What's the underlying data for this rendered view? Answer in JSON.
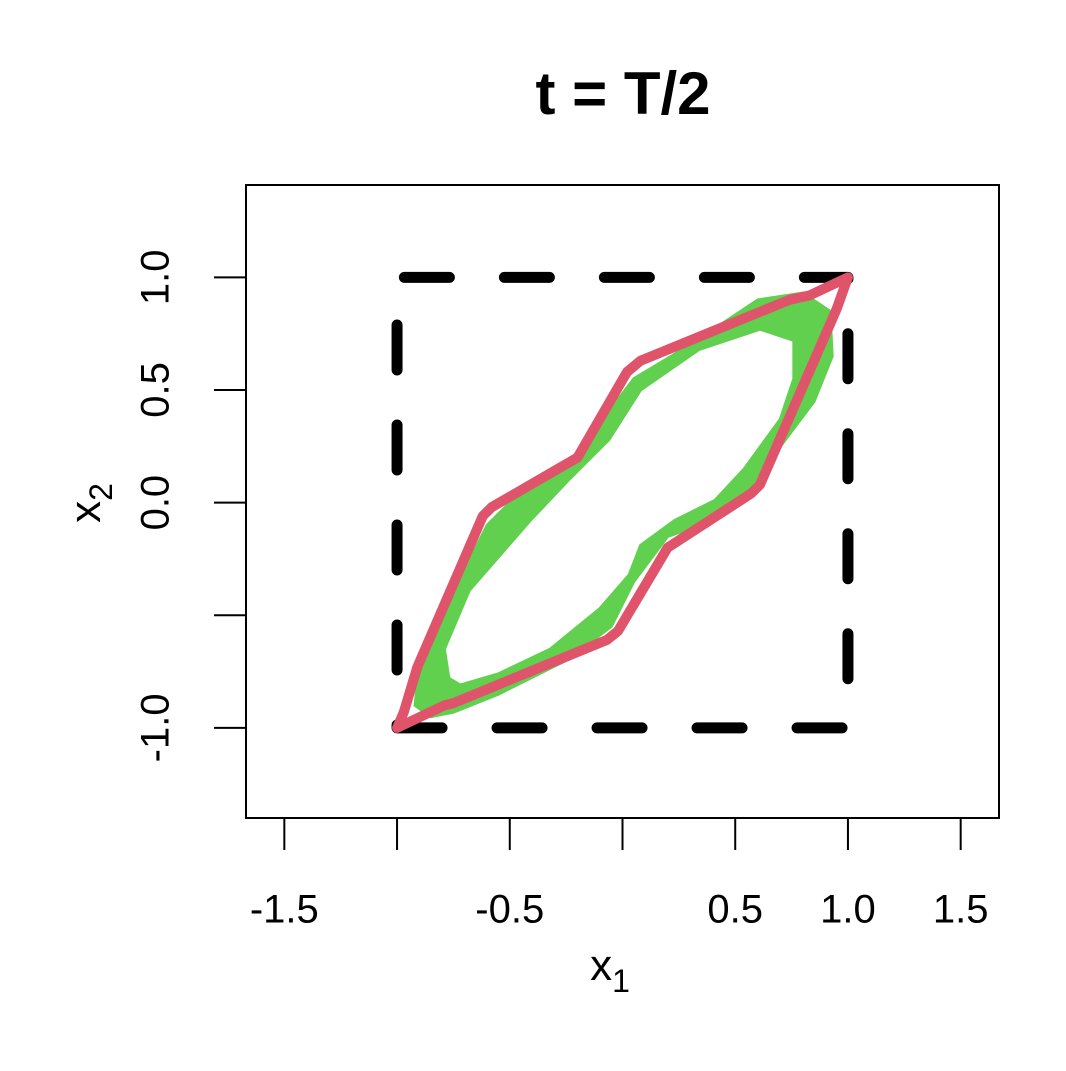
{
  "chart_data": {
    "type": "polygon",
    "title": "t = T/2",
    "xlabel": {
      "text": "x",
      "sub": "1"
    },
    "ylabel": {
      "text": "x",
      "sub": "2"
    },
    "xlim": [
      -1.67,
      1.67
    ],
    "ylim": [
      -1.4,
      1.41
    ],
    "xticks": [
      {
        "value": -1.5,
        "label": "-1.5"
      },
      {
        "value": -1,
        "label": null
      },
      {
        "value": -0.5,
        "label": "-0.5"
      },
      {
        "value": 0,
        "label": null
      },
      {
        "value": 0.5,
        "label": "0.5"
      },
      {
        "value": 1,
        "label": "1.0"
      },
      {
        "value": 1.5,
        "label": "1.5"
      }
    ],
    "yticks": [
      {
        "value": -1,
        "label": "-1.0"
      },
      {
        "value": -0.5,
        "label": null
      },
      {
        "value": 0,
        "label": "0.0"
      },
      {
        "value": 0.5,
        "label": "0.5"
      },
      {
        "value": 1,
        "label": "1.0"
      }
    ],
    "shapes": [
      {
        "color": "#61D04F",
        "fill": true,
        "x": [
          -0.92,
          -0.9,
          -0.8,
          -0.6,
          -0.45,
          -0.25,
          -0.1,
          0.05,
          0.3,
          0.6,
          0.8,
          0.92,
          0.93,
          0.85,
          0.7,
          0.55,
          0.4,
          0.2,
          0.05,
          -0.05,
          -0.25,
          -0.55,
          -0.75,
          -0.85,
          null,
          -0.77,
          -0.79,
          -0.68,
          -0.41,
          -0.24,
          -0.06,
          0.08,
          0.34,
          0.61,
          0.76,
          0.76,
          0.7,
          0.54,
          0.41,
          0.23,
          0.08,
          0.03,
          -0.1,
          -0.32,
          -0.55,
          -0.72
        ],
        "y": [
          -0.9,
          -0.7,
          -0.5,
          -0.1,
          0.05,
          0.15,
          0.35,
          0.55,
          0.7,
          0.9,
          0.93,
          0.85,
          0.65,
          0.45,
          0.25,
          0.02,
          -0.08,
          -0.15,
          -0.35,
          -0.55,
          -0.7,
          -0.85,
          -0.93,
          -0.95,
          null,
          -0.78,
          -0.65,
          -0.39,
          -0.08,
          0.1,
          0.28,
          0.5,
          0.68,
          0.77,
          0.72,
          0.55,
          0.37,
          0.15,
          0.01,
          -0.08,
          -0.19,
          -0.32,
          -0.47,
          -0.65,
          -0.76,
          -0.81
        ]
      },
      {
        "color": "#000000",
        "dashed": true,
        "x": [
          -1,
          1,
          1,
          -1,
          -1
        ],
        "y": [
          -1,
          -1,
          1,
          1,
          -1
        ]
      },
      {
        "color": "#DF536B",
        "x": [
          -1.0,
          -0.97,
          -0.91,
          -0.62,
          -0.58,
          -0.2,
          0.02,
          0.08,
          0.74,
          0.83,
          1.0,
          0.95,
          0.61,
          0.57,
          0.2,
          -0.02,
          -0.07,
          -0.75,
          -0.79,
          -1.0
        ],
        "y": [
          -1.0,
          -0.93,
          -0.73,
          -0.06,
          -0.02,
          0.2,
          0.58,
          0.63,
          0.9,
          0.92,
          1.0,
          0.86,
          0.08,
          0.04,
          -0.2,
          -0.57,
          -0.61,
          -0.89,
          -0.9,
          -1.0
        ]
      }
    ]
  }
}
